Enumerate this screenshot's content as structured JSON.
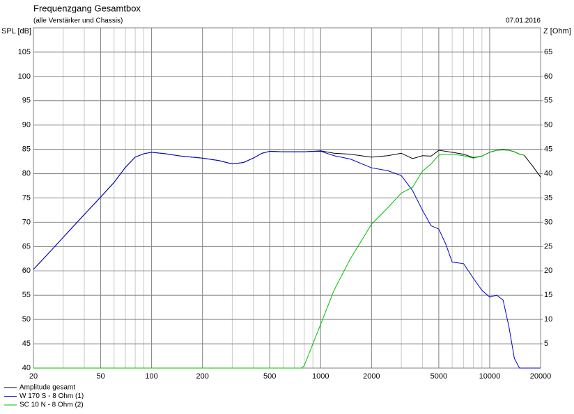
{
  "chart_data": {
    "type": "line",
    "title": "Frequenzgang Gesamtbox",
    "subtitle": "(alle Verstärker und Chassis)",
    "date": "07.01.2016",
    "y_label": "SPL [dB]",
    "y2_label": "Z [Ohm]",
    "log_x": true,
    "grid": true,
    "x": [
      20,
      25,
      30,
      40,
      50,
      60,
      70,
      80,
      90,
      100,
      120,
      150,
      200,
      250,
      300,
      350,
      400,
      450,
      500,
      600,
      700,
      770,
      800,
      900,
      1000,
      1200,
      1500,
      2000,
      2500,
      3000,
      3500,
      4000,
      4500,
      5000,
      5500,
      6000,
      7000,
      8000,
      9000,
      10000,
      11000,
      12000,
      13000,
      14000,
      15000,
      16000,
      18000,
      20000
    ],
    "xlim": [
      20,
      20000
    ],
    "xticks": [
      20,
      50,
      100,
      200,
      500,
      1000,
      2000,
      5000,
      10000,
      20000
    ],
    "xminor": [
      30,
      40,
      60,
      70,
      80,
      90,
      300,
      400,
      600,
      700,
      800,
      900,
      3000,
      4000,
      6000,
      7000,
      8000,
      9000
    ],
    "ylim": [
      40,
      110
    ],
    "yticks": [
      40,
      45,
      50,
      55,
      60,
      65,
      70,
      75,
      80,
      85,
      90,
      95,
      100,
      105
    ],
    "y2lim": [
      0,
      70
    ],
    "y2ticks": [
      5,
      10,
      15,
      20,
      25,
      30,
      35,
      40,
      45,
      50,
      55,
      60,
      65
    ],
    "series": [
      {
        "name": "Amplitude gesamt",
        "color": "#000000",
        "values": [
          60.3,
          63.9,
          66.9,
          71.6,
          75.2,
          78.2,
          81.3,
          83.4,
          84.1,
          84.4,
          84.1,
          83.6,
          83.2,
          82.7,
          82.0,
          82.3,
          83.2,
          84.2,
          84.6,
          84.5,
          84.5,
          84.5,
          84.5,
          84.6,
          84.7,
          84.2,
          84.0,
          83.4,
          83.7,
          84.2,
          83.1,
          83.7,
          83.6,
          84.8,
          84.6,
          84.4,
          84.0,
          83.3,
          83.6,
          84.4,
          84.8,
          84.9,
          84.8,
          84.5,
          84.0,
          83.8,
          81.5,
          79.3
        ]
      },
      {
        "name": "W 170 S - 8 Ohm (1)",
        "color": "#0000d0",
        "values": [
          60.3,
          63.9,
          66.9,
          71.6,
          75.2,
          78.2,
          81.3,
          83.4,
          84.1,
          84.4,
          84.1,
          83.6,
          83.2,
          82.7,
          82.0,
          82.3,
          83.2,
          84.2,
          84.6,
          84.5,
          84.5,
          84.5,
          84.5,
          84.6,
          84.6,
          83.7,
          83.0,
          81.2,
          80.6,
          79.6,
          76.5,
          72.5,
          69.3,
          68.6,
          65.5,
          61.8,
          61.5,
          58.5,
          56,
          54.6,
          55,
          54,
          48.5,
          42,
          40,
          40,
          40,
          40
        ]
      },
      {
        "name": "SC 10 N - 8 Ohm (2)",
        "color": "#00c000",
        "values": [
          40,
          40,
          40,
          40,
          40,
          40,
          40,
          40,
          40,
          40,
          40,
          40,
          40,
          40,
          40,
          40,
          40,
          40,
          40,
          40,
          40,
          40,
          40.5,
          45,
          49,
          56,
          62.5,
          69.6,
          73,
          76,
          77.2,
          80.5,
          82,
          83.8,
          84.0,
          84.0,
          83.7,
          83.2,
          83.6,
          84.4,
          84.8,
          85.0,
          84.8,
          84.5,
          84.0,
          83.8,
          null,
          null
        ]
      }
    ]
  }
}
